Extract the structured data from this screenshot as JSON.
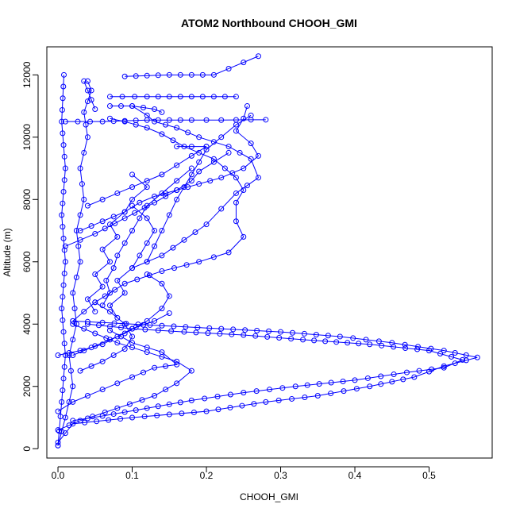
{
  "chart_data": {
    "type": "scatter",
    "title": "ATOM2 Northbound CHOOH_GMI",
    "xlabel": "CHOOH_GMI",
    "ylabel": "Altitude (m)",
    "xlim": [
      -0.015,
      0.585
    ],
    "ylim": [
      -300,
      12900
    ],
    "x_ticks": [
      0.0,
      0.1,
      0.2,
      0.3,
      0.4,
      0.5
    ],
    "x_tick_labels": [
      "0.0",
      "0.1",
      "0.2",
      "0.3",
      "0.4",
      "0.5"
    ],
    "y_ticks": [
      0,
      2000,
      4000,
      6000,
      8000,
      10000,
      12000
    ],
    "y_tick_labels": [
      "0",
      "2000",
      "4000",
      "6000",
      "8000",
      "10000",
      "12000"
    ],
    "grid": false,
    "marker": "open-circle",
    "color": "#0000ff",
    "series": [
      {
        "x": [
          0.0,
          0.02,
          0.1,
          0.2,
          0.28,
          0.35,
          0.42,
          0.48,
          0.52,
          0.565,
          0.52,
          0.45,
          0.38,
          0.3,
          0.22,
          0.14,
          0.06,
          0.02
        ],
        "y": [
          200,
          800,
          1000,
          1200,
          1500,
          1700,
          2000,
          2300,
          2650,
          2930,
          3150,
          3400,
          3600,
          3750,
          3850,
          3950,
          4050,
          4100
        ]
      },
      {
        "x": [
          0.02,
          0.06,
          0.12,
          0.18,
          0.25,
          0.32,
          0.4,
          0.47,
          0.52,
          0.545,
          0.5,
          0.42,
          0.33,
          0.25,
          0.17,
          0.1,
          0.04
        ],
        "y": [
          900,
          1050,
          1300,
          1550,
          1800,
          2000,
          2200,
          2450,
          2600,
          2850,
          3150,
          3350,
          3500,
          3650,
          3750,
          3850,
          4000
        ]
      },
      {
        "x": [
          0.0,
          0.03,
          0.08,
          0.13,
          0.16,
          0.18,
          0.16,
          0.12,
          0.08,
          0.05,
          0.02
        ],
        "y": [
          600,
          900,
          1300,
          1700,
          2100,
          2500,
          2800,
          3100,
          3400,
          3700,
          4000
        ]
      },
      {
        "x": [
          0.0,
          0.02,
          0.06,
          0.1,
          0.13,
          0.16,
          0.14,
          0.1,
          0.07
        ],
        "y": [
          1200,
          1500,
          1900,
          2300,
          2600,
          2700,
          3100,
          3400,
          3800
        ]
      },
      {
        "x": [
          0.02,
          0.05,
          0.09,
          0.14,
          0.19,
          0.23,
          0.25,
          0.24,
          0.24,
          0.25,
          0.24,
          0.21,
          0.17,
          0.14,
          0.12,
          0.09,
          0.07
        ],
        "y": [
          4100,
          4700,
          5300,
          5700,
          6000,
          6300,
          6800,
          7300,
          7900,
          8300,
          8700,
          9300,
          9700,
          10100,
          10300,
          10500,
          10600
        ]
      },
      {
        "x": [
          0.1,
          0.14,
          0.17,
          0.2,
          0.22,
          0.24,
          0.27,
          0.26,
          0.23,
          0.19,
          0.16,
          0.13,
          0.12,
          0.1
        ],
        "y": [
          5800,
          6200,
          6700,
          7200,
          7700,
          8200,
          8700,
          9300,
          9700,
          10000,
          10300,
          10500,
          10700,
          11000
        ]
      },
      {
        "x": [
          0.01,
          0.05,
          0.09,
          0.13,
          0.16,
          0.18,
          0.19,
          0.21,
          0.23
        ],
        "y": [
          6500,
          6900,
          7400,
          7900,
          8300,
          8600,
          8900,
          9200,
          9500
        ]
      },
      {
        "x": [
          0.03,
          0.06,
          0.09,
          0.11,
          0.13,
          0.16,
          0.19,
          0.22,
          0.25,
          0.27,
          0.26,
          0.24,
          0.25,
          0.255
        ],
        "y": [
          7000,
          7300,
          7600,
          7900,
          8100,
          8300,
          8500,
          8700,
          9000,
          9400,
          9800,
          10200,
          10600,
          11000
        ]
      },
      {
        "x": [
          0.04,
          0.06,
          0.08,
          0.1,
          0.12,
          0.14,
          0.16,
          0.18,
          0.2
        ],
        "y": [
          7800,
          8000,
          8200,
          8400,
          8600,
          8800,
          9100,
          9400,
          9700
        ]
      },
      {
        "x": [
          0.06,
          0.07,
          0.065,
          0.075,
          0.08,
          0.09,
          0.1,
          0.11,
          0.12,
          0.14,
          0.16,
          0.18
        ],
        "y": [
          4600,
          5000,
          5400,
          5800,
          6200,
          6600,
          7000,
          7400,
          7800,
          8200,
          8600,
          9000
        ]
      },
      {
        "x": [
          0.05,
          0.04,
          0.06,
          0.05,
          0.07,
          0.06,
          0.08,
          0.07,
          0.09,
          0.1,
          0.12,
          0.1
        ],
        "y": [
          4400,
          4800,
          5200,
          5600,
          6000,
          6400,
          6800,
          7200,
          7600,
          8000,
          8400,
          8800
        ]
      },
      {
        "x": [
          0.08,
          0.07,
          0.09,
          0.08,
          0.1,
          0.11,
          0.12,
          0.13,
          0.12,
          0.1
        ],
        "y": [
          4200,
          4600,
          5000,
          5400,
          5800,
          6200,
          6600,
          7000,
          7400,
          7800
        ]
      },
      {
        "x": [
          0.12,
          0.13,
          0.14,
          0.15,
          0.16,
          0.17,
          0.18,
          0.19,
          0.2,
          0.22,
          0.24,
          0.26
        ],
        "y": [
          6000,
          6500,
          7000,
          7500,
          8000,
          8400,
          8800,
          9200,
          9600,
          10000,
          10400,
          10700
        ]
      },
      {
        "x": [
          0.02,
          0.05,
          0.09,
          0.12,
          0.14,
          0.15,
          0.14,
          0.12
        ],
        "y": [
          3000,
          3300,
          3700,
          4100,
          4500,
          4900,
          5300,
          5600
        ]
      },
      {
        "x": [
          0.03,
          0.06,
          0.09,
          0.1,
          0.09,
          0.07,
          0.05
        ],
        "y": [
          2500,
          2800,
          3200,
          3600,
          4000,
          4400,
          4700
        ]
      },
      {
        "x": [
          0.0,
          0.01,
          0.02,
          0.015,
          0.025,
          0.02,
          0.03,
          0.025,
          0.035,
          0.03,
          0.04,
          0.035,
          0.045,
          0.04
        ],
        "y": [
          100,
          1000,
          2000,
          3000,
          4000,
          5000,
          6000,
          7000,
          8000,
          9000,
          10000,
          10800,
          11500,
          11800
        ]
      },
      {
        "x": [
          0.0,
          0.005,
          0.01,
          0.005,
          0.01,
          0.005,
          0.01,
          0.005,
          0.008
        ],
        "y": [
          100,
          1500,
          3000,
          4500,
          6000,
          7500,
          9000,
          10500,
          12000
        ]
      },
      {
        "x": [
          0.035,
          0.04,
          0.045,
          0.05
        ],
        "y": [
          11800,
          11500,
          11200,
          10900
        ]
      },
      {
        "x": [
          0.09,
          0.15,
          0.21,
          0.23,
          0.25,
          0.27
        ],
        "y": [
          11950,
          12000,
          12000,
          12200,
          12400,
          12600
        ]
      },
      {
        "x": [
          0.07,
          0.12,
          0.18,
          0.24
        ],
        "y": [
          11300,
          11300,
          11300,
          11300
        ]
      },
      {
        "x": [
          0.07,
          0.1,
          0.13,
          0.14
        ],
        "y": [
          11000,
          11000,
          10900,
          10800
        ]
      },
      {
        "x": [
          0.01,
          0.06,
          0.12,
          0.18,
          0.22,
          0.26,
          0.28
        ],
        "y": [
          10500,
          10500,
          10550,
          10550,
          10550,
          10560,
          10560
        ]
      },
      {
        "x": [
          0.16,
          0.18,
          0.2
        ],
        "y": [
          9700,
          9700,
          9700
        ]
      },
      {
        "x": [
          0.0,
          0.03,
          0.06,
          0.08,
          0.1,
          0.13,
          0.15
        ],
        "y": [
          3000,
          3150,
          3350,
          3600,
          3850,
          4100,
          4350
        ]
      }
    ]
  }
}
